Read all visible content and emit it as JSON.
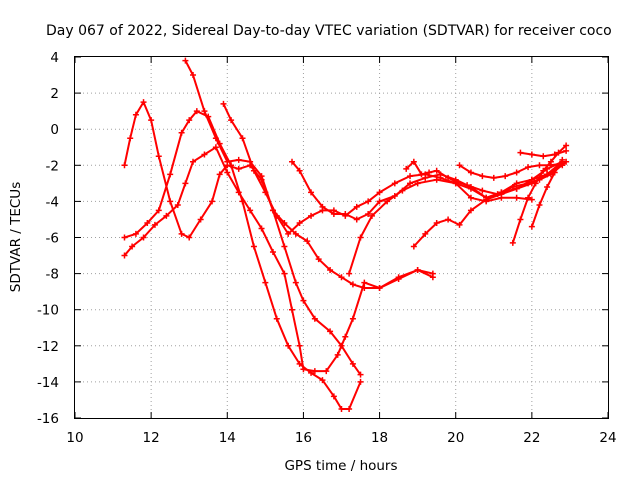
{
  "chart_data": {
    "type": "line",
    "title": "Day 067 of 2022, Sidereal Day-to-day VTEC variation (SDTVAR) for receiver coco",
    "xlabel": "GPS time / hours",
    "ylabel": "SDTVAR / TECUs",
    "xlim": [
      10,
      24
    ],
    "ylim": [
      -16,
      4
    ],
    "xticks": [
      10,
      12,
      14,
      16,
      18,
      20,
      22,
      24
    ],
    "yticks": [
      -16,
      -14,
      -12,
      -10,
      -8,
      -6,
      -4,
      -2,
      0,
      2,
      4
    ],
    "grid": true,
    "marker": "+",
    "color": "#ff0000",
    "series": [
      {
        "name": "s1",
        "x": [
          11.3,
          11.45,
          11.6,
          11.8,
          12.0,
          12.2,
          12.5,
          12.8,
          13.0,
          13.3,
          13.6,
          13.8,
          14.0,
          14.3,
          14.6,
          14.9,
          15.2,
          15.5,
          15.8,
          16.0,
          16.3,
          16.7,
          17.0,
          17.3,
          17.5
        ],
        "y": [
          -2.0,
          -0.5,
          0.8,
          1.5,
          0.5,
          -1.5,
          -4.0,
          -5.8,
          -6.0,
          -5.0,
          -4.0,
          -2.5,
          -2.0,
          -2.2,
          -2.0,
          -2.8,
          -4.5,
          -6.5,
          -8.5,
          -9.5,
          -10.5,
          -11.2,
          -12.0,
          -13.0,
          -13.6
        ]
      },
      {
        "name": "s2",
        "x": [
          11.3,
          11.5,
          11.8,
          12.1,
          12.4,
          12.7,
          12.9,
          13.1,
          13.4,
          13.7,
          14.0,
          14.3,
          14.6,
          14.9,
          15.2,
          15.5,
          15.7,
          15.9,
          16.0,
          16.3,
          16.6,
          16.9,
          17.1,
          17.3,
          17.6,
          18.0,
          18.5,
          19.0,
          19.4
        ],
        "y": [
          -7.0,
          -6.5,
          -6.0,
          -5.3,
          -4.8,
          -4.2,
          -3.0,
          -1.8,
          -1.4,
          -1.0,
          -2.4,
          -3.5,
          -4.5,
          -5.5,
          -6.8,
          -8.0,
          -10.0,
          -12.0,
          -13.3,
          -13.4,
          -13.4,
          -12.5,
          -11.5,
          -10.5,
          -8.5,
          -8.8,
          -8.2,
          -7.8,
          -8.2
        ]
      },
      {
        "name": "s3",
        "x": [
          11.3,
          11.6,
          11.9,
          12.2,
          12.5,
          12.8,
          13.0,
          13.2,
          13.5,
          13.8,
          14.1,
          14.4,
          14.7,
          15.0,
          15.3,
          15.6,
          15.9,
          16.2,
          16.5,
          16.8,
          17.0,
          17.2,
          17.5
        ],
        "y": [
          -6.0,
          -5.8,
          -5.2,
          -4.5,
          -2.5,
          -0.2,
          0.5,
          1.0,
          0.7,
          -0.8,
          -2.0,
          -4.0,
          -6.5,
          -8.5,
          -10.5,
          -12.0,
          -13.0,
          -13.5,
          -13.9,
          -14.8,
          -15.5,
          -15.5,
          -14.0
        ]
      },
      {
        "name": "s4",
        "x": [
          12.9,
          13.1,
          13.4,
          13.7,
          14.0,
          14.3,
          14.6,
          14.9,
          15.2,
          15.5,
          15.8,
          16.1,
          16.4,
          16.7,
          17.0,
          17.3,
          17.6,
          18.0,
          18.5,
          19.0,
          19.4
        ],
        "y": [
          3.8,
          3.0,
          1.0,
          -0.5,
          -1.8,
          -1.7,
          -1.8,
          -2.6,
          -4.5,
          -5.2,
          -5.8,
          -6.2,
          -7.2,
          -7.8,
          -8.2,
          -8.6,
          -8.8,
          -8.8,
          -8.3,
          -7.8,
          -8.0
        ]
      },
      {
        "name": "s5",
        "x": [
          13.9,
          14.1,
          14.4,
          14.7,
          15.0,
          15.3,
          15.6,
          15.9,
          16.2,
          16.5,
          16.8,
          17.1,
          17.4,
          17.7,
          18.0,
          18.4,
          18.8,
          19.2,
          19.6,
          20.0,
          20.4,
          20.8,
          21.2,
          21.6,
          22.0
        ],
        "y": [
          1.4,
          0.5,
          -0.5,
          -2.3,
          -3.5,
          -4.8,
          -5.8,
          -5.2,
          -4.8,
          -4.5,
          -4.5,
          -4.8,
          -4.3,
          -4.0,
          -3.5,
          -3.0,
          -2.6,
          -2.5,
          -2.7,
          -3.0,
          -3.8,
          -4.0,
          -3.8,
          -3.8,
          -3.9
        ]
      },
      {
        "name": "s6",
        "x": [
          15.7,
          15.9,
          16.2,
          16.5,
          16.8,
          17.1,
          17.4,
          17.7,
          18.0,
          18.4,
          18.8,
          19.2,
          19.6,
          20.0,
          20.4,
          20.8,
          21.2,
          21.6,
          22.0,
          22.4,
          22.8
        ],
        "y": [
          -1.8,
          -2.3,
          -3.5,
          -4.3,
          -4.7,
          -4.7,
          -5.0,
          -4.7,
          -4.0,
          -3.7,
          -3.0,
          -2.7,
          -2.5,
          -2.8,
          -3.2,
          -3.8,
          -3.5,
          -3.0,
          -2.8,
          -2.5,
          -2.0
        ]
      },
      {
        "name": "s7",
        "x": [
          17.2,
          17.5,
          17.8,
          18.2,
          18.6,
          19.0,
          19.5,
          20.0,
          20.4,
          20.8,
          21.2,
          21.6,
          22.0,
          22.4,
          22.8
        ],
        "y": [
          -8.0,
          -6.0,
          -4.8,
          -4.0,
          -3.4,
          -3.0,
          -2.8,
          -3.0,
          -3.3,
          -3.8,
          -3.5,
          -3.3,
          -2.8,
          -2.2,
          -1.8
        ]
      },
      {
        "name": "s8",
        "x": [
          18.7,
          18.9,
          19.1,
          19.3,
          19.5,
          19.8,
          20.0,
          20.3,
          20.7,
          21.1,
          21.5,
          21.9,
          22.2,
          22.5,
          22.9
        ],
        "y": [
          -2.2,
          -1.8,
          -2.5,
          -2.4,
          -2.3,
          -2.7,
          -2.9,
          -3.1,
          -3.4,
          -3.6,
          -3.2,
          -3.0,
          -2.8,
          -2.5,
          -1.8
        ]
      },
      {
        "name": "s9",
        "x": [
          18.9,
          19.2,
          19.5,
          19.8,
          20.1,
          20.4,
          20.8,
          21.2,
          21.6,
          22.0,
          22.4,
          22.8
        ],
        "y": [
          -6.5,
          -5.8,
          -5.2,
          -5.0,
          -5.3,
          -4.5,
          -3.9,
          -3.6,
          -3.3,
          -3.0,
          -2.5,
          -1.8
        ]
      },
      {
        "name": "s10",
        "x": [
          20.1,
          20.4,
          20.7,
          21.0,
          21.3,
          21.6,
          21.9,
          22.2,
          22.5,
          22.8
        ],
        "y": [
          -2.0,
          -2.4,
          -2.6,
          -2.7,
          -2.6,
          -2.4,
          -2.1,
          -2.0,
          -2.0,
          -1.9
        ]
      },
      {
        "name": "s11",
        "x": [
          21.5,
          21.7,
          21.9,
          22.1,
          22.3,
          22.5,
          22.7,
          22.9
        ],
        "y": [
          -6.3,
          -5.0,
          -3.8,
          -3.0,
          -2.3,
          -1.8,
          -1.3,
          -0.9
        ]
      },
      {
        "name": "s12",
        "x": [
          22.0,
          22.2,
          22.4,
          22.6,
          22.8
        ],
        "y": [
          -5.4,
          -4.2,
          -3.2,
          -2.4,
          -1.7
        ]
      },
      {
        "name": "s13",
        "x": [
          21.7,
          22.0,
          22.3,
          22.6,
          22.9
        ],
        "y": [
          -1.3,
          -1.4,
          -1.5,
          -1.4,
          -1.2
        ]
      }
    ]
  }
}
